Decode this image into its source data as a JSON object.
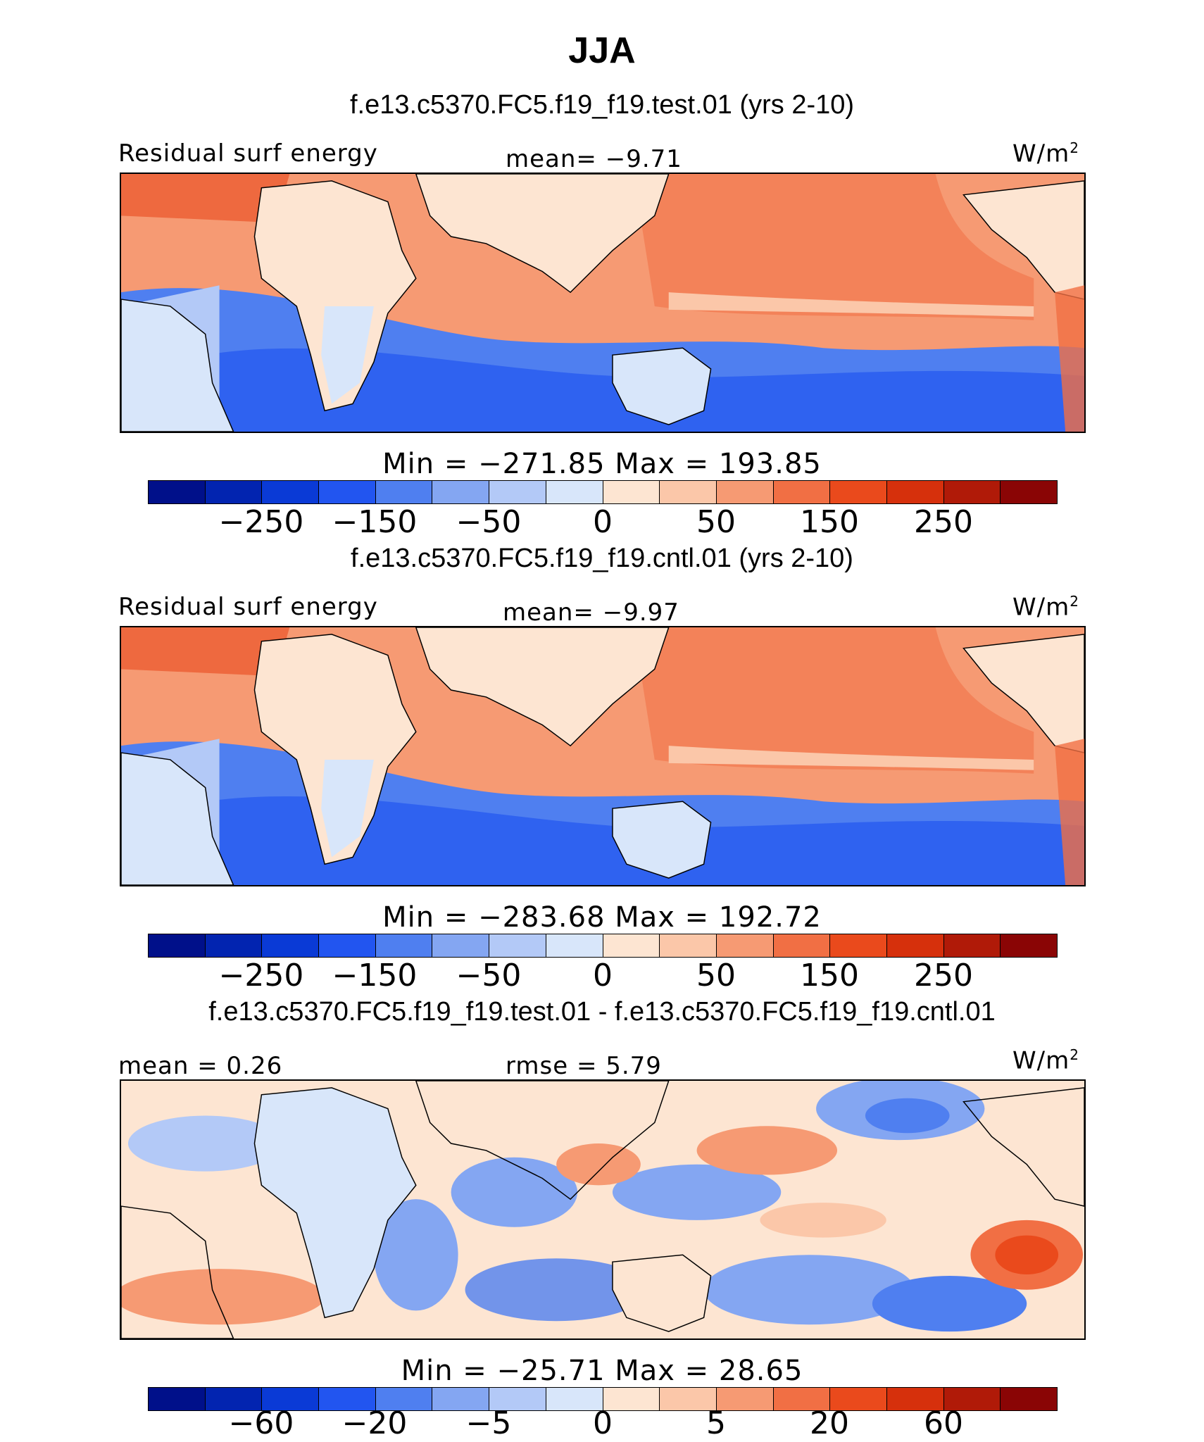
{
  "title": "JJA",
  "units": "W/m",
  "units_exp": "2",
  "panels": [
    {
      "subtitle": "f.e13.c5370.FC5.f19_f19.test.01 (yrs 2-10)",
      "left_label": "Residual surf energy",
      "center_label": "mean=  −9.71",
      "minmax": "Min  =  −271.85  Max  =  193.85",
      "ticks": [
        "−250",
        "−150",
        "−50",
        "0",
        "50",
        "150",
        "250"
      ]
    },
    {
      "subtitle": "f.e13.c5370.FC5.f19_f19.cntl.01 (yrs 2-10)",
      "left_label": "Residual surf energy",
      "center_label": "mean=  −9.97",
      "minmax": "Min  =  −283.68  Max  =  192.72",
      "ticks": [
        "−250",
        "−150",
        "−50",
        "0",
        "50",
        "150",
        "250"
      ]
    },
    {
      "subtitle": "f.e13.c5370.FC5.f19_f19.test.01 - f.e13.c5370.FC5.f19_f19.cntl.01",
      "left_label": "mean =    0.26",
      "center_label": "rmse =    5.79",
      "minmax": "Min  =  −25.71  Max  =   28.65",
      "ticks": [
        "−60",
        "−20",
        "−5",
        "0",
        "5",
        "20",
        "60"
      ]
    }
  ],
  "colorbar_colors": [
    "#00108a",
    "#0224b0",
    "#0a3ad6",
    "#2255f0",
    "#4f7ff0",
    "#84a6f2",
    "#b3c9f7",
    "#d8e6fa",
    "#fde5d2",
    "#fbc7a9",
    "#f69a73",
    "#f16f44",
    "#ea4a1c",
    "#d6300c",
    "#b01a08",
    "#8a0505"
  ]
}
